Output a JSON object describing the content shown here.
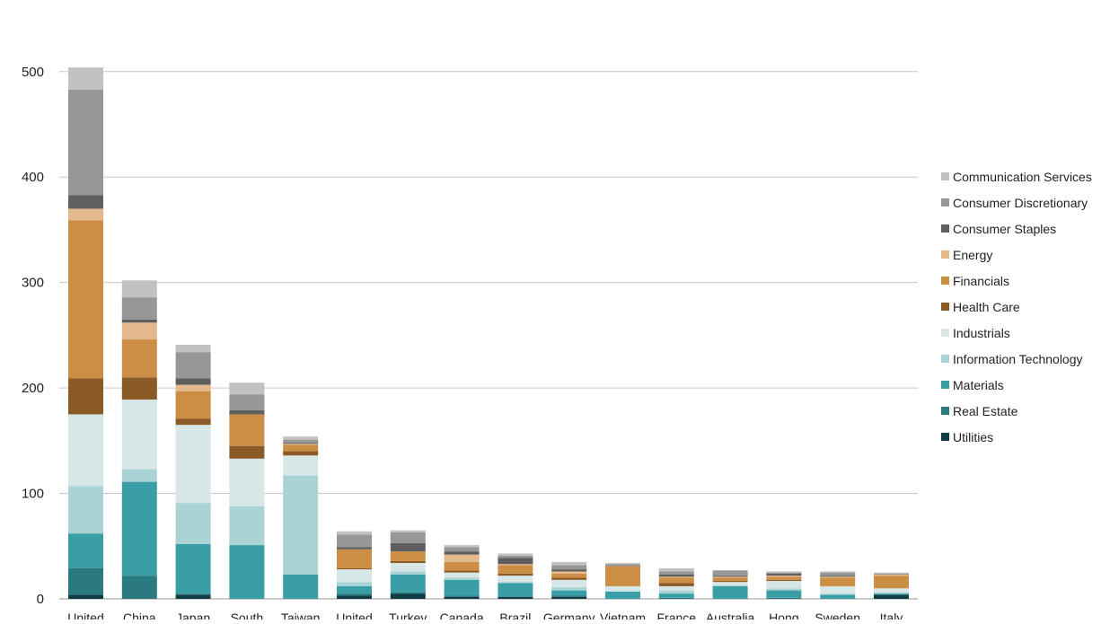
{
  "chart_data": {
    "type": "bar",
    "stacked": true,
    "title": "",
    "xlabel": "",
    "ylabel": "",
    "ylim": [
      0,
      520
    ],
    "yticks": [
      0,
      100,
      200,
      300,
      400,
      500
    ],
    "grid": true,
    "legend_position": "right",
    "categories": [
      "United",
      "China",
      "Japan",
      "South",
      "Taiwan",
      "United",
      "Turkey",
      "Canada",
      "Brazil",
      "Germany",
      "Vietnam",
      "France",
      "Australia",
      "Hong",
      "Sweden",
      "Italy"
    ],
    "series": [
      {
        "name": "Utilities",
        "color": "#0f3d46",
        "values": [
          4,
          0,
          4,
          0,
          0,
          3,
          5,
          2,
          2,
          2,
          0,
          0,
          0,
          0,
          0,
          4
        ]
      },
      {
        "name": "Real Estate",
        "color": "#2a7a80",
        "values": [
          25,
          22,
          1,
          0,
          0,
          2,
          1,
          1,
          0,
          1,
          0,
          1,
          0,
          1,
          0,
          0
        ]
      },
      {
        "name": "Materials",
        "color": "#3a9ea6",
        "values": [
          33,
          89,
          47,
          51,
          23,
          7,
          17,
          15,
          13,
          5,
          7,
          4,
          12,
          7,
          4,
          1
        ]
      },
      {
        "name": "Information Technology",
        "color": "#a9d3d5",
        "values": [
          45,
          12,
          39,
          37,
          94,
          4,
          3,
          2,
          1,
          3,
          0,
          3,
          1,
          2,
          1,
          1
        ]
      },
      {
        "name": "Industrials",
        "color": "#d7e6e7",
        "values": [
          68,
          66,
          74,
          45,
          19,
          12,
          8,
          5,
          6,
          7,
          5,
          4,
          3,
          7,
          7,
          4
        ]
      },
      {
        "name": "Health Care",
        "color": "#8a5a27",
        "values": [
          34,
          21,
          6,
          12,
          4,
          1,
          2,
          2,
          2,
          2,
          0,
          3,
          1,
          1,
          0,
          0
        ]
      },
      {
        "name": "Financials",
        "color": "#cc8d45",
        "values": [
          150,
          36,
          26,
          30,
          6,
          18,
          9,
          8,
          8,
          4,
          19,
          5,
          3,
          3,
          8,
          12
        ]
      },
      {
        "name": "Energy",
        "color": "#e2b88c",
        "values": [
          11,
          16,
          6,
          0,
          1,
          0,
          0,
          7,
          1,
          2,
          0,
          1,
          1,
          1,
          1,
          1
        ]
      },
      {
        "name": "Consumer Staples",
        "color": "#5f5f5f",
        "values": [
          13,
          3,
          6,
          4,
          1,
          2,
          8,
          3,
          6,
          2,
          0,
          2,
          1,
          2,
          1,
          0
        ]
      },
      {
        "name": "Consumer Discretionary",
        "color": "#979797",
        "values": [
          100,
          21,
          25,
          15,
          3,
          12,
          10,
          4,
          2,
          4,
          2,
          3,
          5,
          1,
          3,
          1
        ]
      },
      {
        "name": "Communication Services",
        "color": "#c2c2c2",
        "values": [
          21,
          16,
          7,
          11,
          3,
          3,
          2,
          2,
          2,
          3,
          1,
          3,
          0,
          1,
          1,
          1
        ]
      }
    ]
  }
}
